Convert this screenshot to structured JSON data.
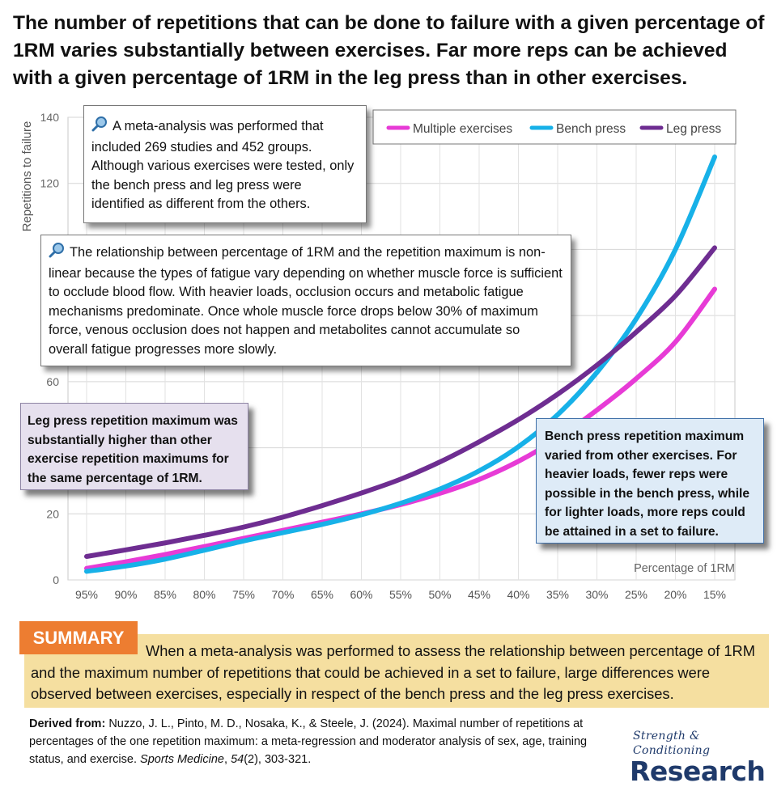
{
  "headline": "The number of repetitions that can be done to failure with a given percentage of 1RM varies substantially between exercises. Far more reps can be achieved with a given percentage of 1RM in the leg press than in other exercises.",
  "chart_data": {
    "type": "line",
    "title": "",
    "xlabel": "Percentage of 1RM",
    "ylabel": "Repetitions to failure",
    "categories": [
      "95%",
      "90%",
      "85%",
      "80%",
      "75%",
      "70%",
      "65%",
      "60%",
      "55%",
      "50%",
      "45%",
      "40%",
      "35%",
      "30%",
      "25%",
      "20%",
      "15%"
    ],
    "ylim": [
      0,
      140
    ],
    "yticks": [
      0,
      20,
      40,
      60,
      80,
      100,
      120,
      140
    ],
    "grid": true,
    "legend": "top-right",
    "series": [
      {
        "name": "Multiple exercises",
        "color": "#e73bd6",
        "values": [
          3.5,
          5.5,
          7.7,
          10.1,
          12.6,
          15.0,
          17.5,
          20.0,
          22.8,
          26.2,
          30.4,
          35.9,
          42.9,
          51.4,
          60.9,
          72.0,
          88.0
        ]
      },
      {
        "name": "Bench press",
        "color": "#17b1e8",
        "values": [
          2.6,
          4.2,
          6.3,
          9.0,
          11.8,
          14.3,
          16.8,
          19.7,
          23.2,
          27.5,
          33.0,
          40.3,
          50.0,
          62.8,
          79.0,
          100.0,
          128.0
        ]
      },
      {
        "name": "Leg press",
        "color": "#6e2d91",
        "values": [
          7.1,
          9.1,
          11.2,
          13.5,
          16.0,
          19.0,
          22.5,
          26.3,
          30.5,
          35.7,
          41.8,
          48.5,
          56.2,
          65.0,
          75.0,
          86.0,
          100.5
        ]
      }
    ]
  },
  "callouts": {
    "note1": "A meta-analysis was performed that included 269 studies and 452 groups. Although various exercises were tested, only the bench press and leg press were identified as different from the others.",
    "note2": "The relationship between percentage of 1RM and the repetition maximum is non-linear because the types of fatigue vary depending on whether muscle force is sufficient to occlude blood flow. With heavier loads, occlusion occurs and metabolic fatigue mechanisms predominate. Once whole muscle force drops below 30% of maximum force, venous occlusion does not happen and metabolites cannot accumulate so overall fatigue progresses more slowly.",
    "leg_press": "Leg press repetition maximum was substantially higher than other exercise repetition maximums for the same percentage of 1RM.",
    "bench_press": "Bench press repetition maximum varied from other exercises. For heavier loads, fewer reps were possible in the bench press, while for lighter loads, more reps could be attained in a set to failure."
  },
  "summary": {
    "label": "SUMMARY",
    "text": "When a meta-analysis was performed to assess the relationship between percentage of 1RM and the maximum number of repetitions that could be achieved in a set to failure, large differences were observed between exercises, especially in respect of the bench press and the leg press exercises."
  },
  "citation": {
    "label": "Derived from:",
    "authors": "Nuzzo, J. L., Pinto, M. D., Nosaka, K., & Steele, J. (2024). Maximal number of repetitions at percentages of the one repetition maximum: a meta-regression and moderator analysis of sex, age, training status, and exercise.",
    "journal": "Sports Medicine",
    "volume": "54",
    "issue_pages": "(2), 303-321."
  },
  "logo": {
    "script": "Strength & Conditioning",
    "main": "Research",
    "color": "#1f3a6b"
  }
}
